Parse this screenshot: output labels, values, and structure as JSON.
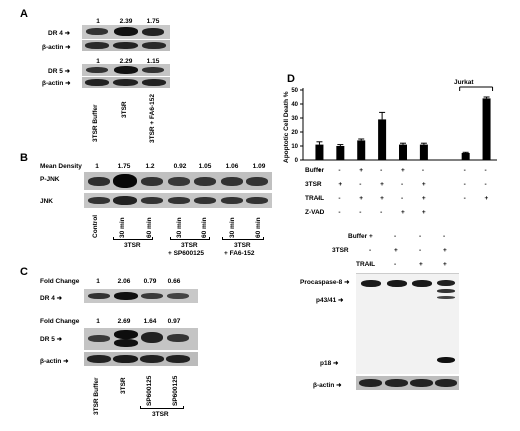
{
  "panelA": {
    "label": "A",
    "dr4": {
      "name": "DR 4",
      "values": [
        "1",
        "2.39",
        "1.75"
      ]
    },
    "actin1": "β-actin",
    "dr5": {
      "name": "DR 5",
      "values": [
        "1",
        "2.29",
        "1.15"
      ]
    },
    "actin2": "β-actin",
    "lanes": [
      "3TSR Buffer",
      "3TSR",
      "3TSR + FA6-152"
    ]
  },
  "panelB": {
    "label": "B",
    "density_label": "Mean Density",
    "values": [
      "1",
      "1.75",
      "1.2",
      "0.92",
      "1.05",
      "1.06",
      "1.09"
    ],
    "pjnk": "P-JNK",
    "jnk": "JNK",
    "lanes": [
      "Control",
      "30 min",
      "60 min",
      "30 min",
      "60 min",
      "30 min",
      "60 min"
    ],
    "groups": [
      "3TSR",
      "3TSR",
      "+ SP600125",
      "3TSR",
      "+ FA6-152"
    ]
  },
  "panelC": {
    "label": "C",
    "fold_label": "Fold Change",
    "dr4": {
      "name": "DR 4",
      "values": [
        "1",
        "2.06",
        "0.79",
        "0.66"
      ]
    },
    "fold_label2": "Fold Change",
    "dr5": {
      "name": "DR 5",
      "values": [
        "1",
        "2.69",
        "1.64",
        "0.97"
      ]
    },
    "actin": "β-actin",
    "lanes": [
      "3TSR Buffer",
      "3TSR",
      "SP600125",
      "SP600125"
    ],
    "group": "3TSR"
  },
  "panelD": {
    "label": "D",
    "ylabel": "Apoptotic Cell Death %",
    "yticks": [
      "0",
      "10",
      "20",
      "30",
      "40",
      "50"
    ],
    "jurkat": "Jurkat",
    "rows": [
      {
        "name": "Buffer",
        "signs": [
          "+",
          "-",
          "+",
          "-",
          "+",
          "-",
          "",
          "-",
          "-"
        ]
      },
      {
        "name": "3TSR",
        "signs": [
          "-",
          "+",
          "-",
          "+",
          "-",
          "+",
          "",
          "-",
          "-"
        ]
      },
      {
        "name": "TRAIL",
        "signs": [
          "-",
          "-",
          "+",
          "+",
          "-",
          "+",
          "",
          "-",
          "+"
        ]
      },
      {
        "name": "Z-VAD",
        "signs": [
          "-",
          "-",
          "-",
          "-",
          "+",
          "+",
          "",
          "",
          ""
        ]
      }
    ],
    "blot_rows": [
      {
        "name": "Buffer",
        "signs": [
          "+",
          "-",
          "-",
          "-"
        ]
      },
      {
        "name": "3TSR",
        "signs": [
          "-",
          "+",
          "-",
          "+"
        ]
      },
      {
        "name": "TRAIL",
        "signs": [
          "-",
          "-",
          "+",
          "+"
        ]
      }
    ],
    "procaspase": "Procaspase-8",
    "p43": "p43/41",
    "p18": "p18",
    "actin": "β-actin"
  },
  "chart_data": {
    "type": "bar",
    "ylabel": "Apoptotic Cell Death %",
    "ylim": [
      0,
      50
    ],
    "values": [
      11,
      10,
      14,
      29,
      11,
      11,
      null,
      5,
      44
    ],
    "errors": [
      2,
      1,
      1,
      5,
      1,
      1,
      null,
      0.5,
      1
    ]
  }
}
